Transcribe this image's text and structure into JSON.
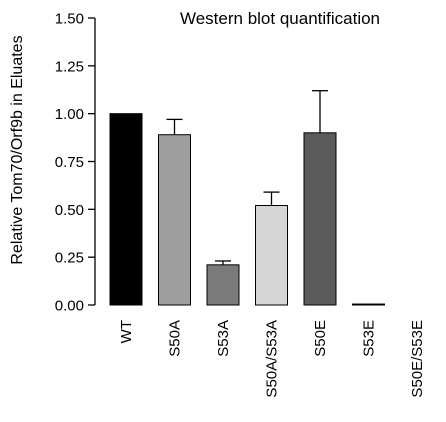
{
  "chart_data": {
    "type": "bar",
    "title": "Western blot quantification",
    "ylabel": "Relative Tom70/Orf9b in Eluates",
    "xlabel": "",
    "categories": [
      "WT",
      "S50A",
      "S53A",
      "S50A/S53A",
      "S50E",
      "S53E",
      "S50E/S53E"
    ],
    "values": [
      1.0,
      0.89,
      0.21,
      0.52,
      0.9,
      0.005,
      0.0
    ],
    "errors": [
      0.0,
      0.08,
      0.02,
      0.07,
      0.22,
      0.0,
      0.0
    ],
    "ylim": [
      0,
      1.5
    ],
    "yticks": [
      0,
      0.25,
      0.5,
      0.75,
      1.0,
      1.25,
      1.5
    ],
    "ytick_labels": [
      "0.00",
      "0.25",
      "0.50",
      "0.75",
      "1.00",
      "1.25",
      "1.50"
    ],
    "colors": [
      "#000000",
      "#9e9e9e",
      "#7a7a7a",
      "#d6d6d6",
      "#5c5c5c",
      "#1a1a1a",
      "#1a1a1a"
    ],
    "grid": false,
    "legend": "none"
  }
}
